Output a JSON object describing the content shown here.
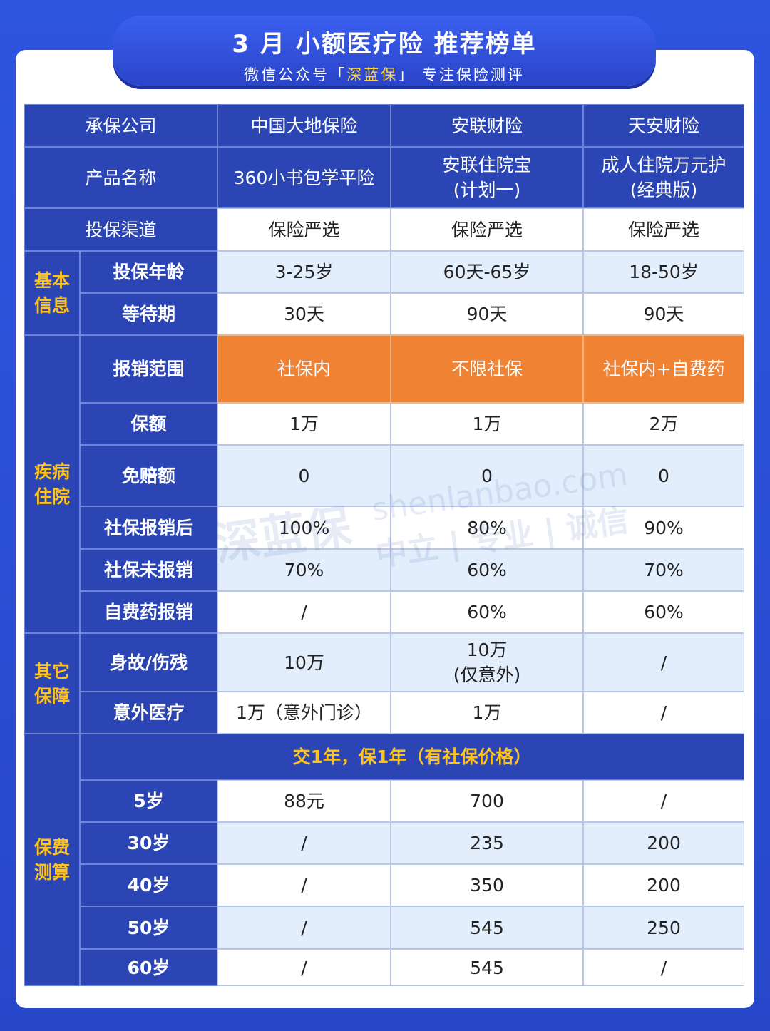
{
  "header": {
    "title": "3 月 小额医疗险 推荐榜单",
    "subtitle_prefix": "微信公众号「",
    "subtitle_brand": "深蓝保",
    "subtitle_suffix": "」 专注保险测评"
  },
  "table": {
    "top_rows": [
      [
        "承保公司",
        "中国大地保险",
        "安联财险",
        "天安财险"
      ],
      [
        "产品名称",
        "360小书包学平险",
        "安联住院宝\n(计划一)",
        "成人住院万元护\n(经典版)"
      ],
      [
        "投保渠道",
        "保险严选",
        "保险严选",
        "保险严选"
      ]
    ],
    "groups": [
      {
        "name": "基本\n信息",
        "rows": [
          [
            "投保年龄",
            "3-25岁",
            "60天-65岁",
            "18-50岁"
          ],
          [
            "等待期",
            "30天",
            "90天",
            "90天"
          ]
        ]
      },
      {
        "name": "疾病\n住院",
        "rows": [
          [
            "报销范围",
            "社保内",
            "不限社保",
            "社保内+自费药"
          ],
          [
            "保额",
            "1万",
            "1万",
            "2万"
          ],
          [
            "免赔额",
            "0",
            "0",
            "0"
          ],
          [
            "社保报销后",
            "100%",
            "80%",
            "90%"
          ],
          [
            "社保未报销",
            "70%",
            "60%",
            "70%"
          ],
          [
            "自费药报销",
            "/",
            "60%",
            "60%"
          ]
        ]
      },
      {
        "name": "其它\n保障",
        "rows": [
          [
            "身故/伤残",
            "10万",
            "10万\n(仅意外)",
            "/"
          ],
          [
            "意外医疗",
            "1万（意外门诊）",
            "1万",
            "/"
          ]
        ]
      },
      {
        "name": "保费\n测算",
        "subheader": "交1年，保1年（有社保价格）",
        "rows": [
          [
            "5岁",
            "88元",
            "700",
            "/"
          ],
          [
            "30岁",
            "/",
            "235",
            "200"
          ],
          [
            "40岁",
            "/",
            "350",
            "200"
          ],
          [
            "50岁",
            "/",
            "545",
            "250"
          ],
          [
            "60岁",
            "/",
            "545",
            "/"
          ]
        ]
      }
    ]
  },
  "watermark": {
    "brand": "深蓝保",
    "site": "shenlanbao.com",
    "motto": "中立 | 专业 | 诚信"
  }
}
